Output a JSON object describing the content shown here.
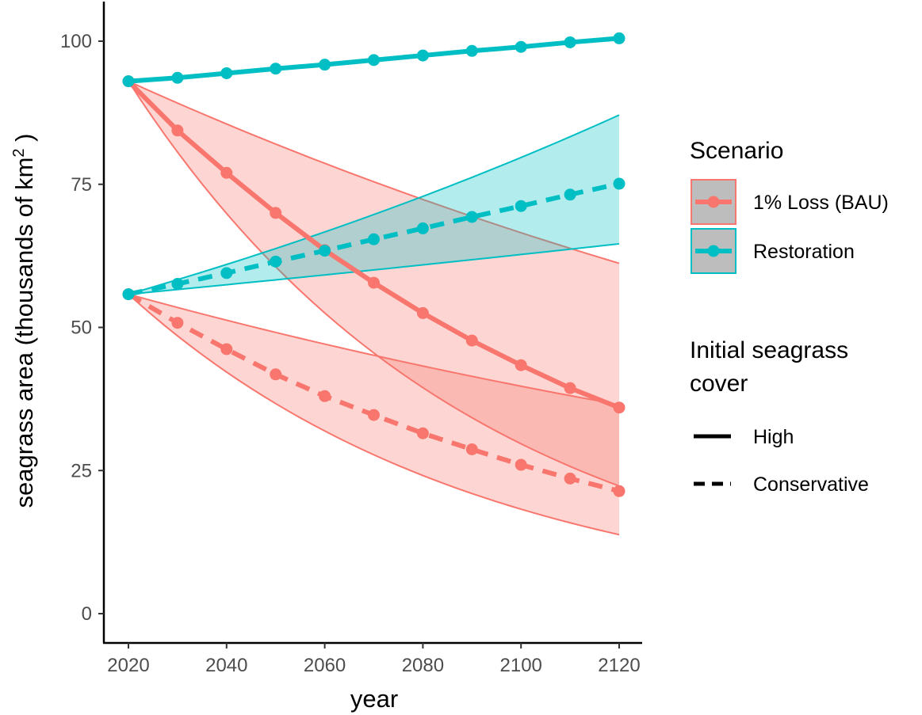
{
  "chart_data": {
    "type": "line",
    "xlabel": "year",
    "ylabel_main": "seagrass area (thousands of  km",
    "ylabel_sup": "2",
    "ylabel_close": " )",
    "xlim": [
      2020,
      2120
    ],
    "ylim": [
      0,
      100
    ],
    "x_ticks": [
      "2020",
      "2040",
      "2060",
      "2080",
      "2100",
      "2120"
    ],
    "y_ticks": [
      "0",
      "25",
      "50",
      "75",
      "100"
    ],
    "grid": false,
    "colors": {
      "loss": "#F8766D",
      "restoration": "#00BFC4"
    },
    "x": [
      2020,
      2030,
      2040,
      2050,
      2060,
      2070,
      2080,
      2090,
      2100,
      2110,
      2120
    ],
    "series": [
      {
        "name": "1% Loss (BAU)",
        "cover": "High",
        "linestyle": "solid",
        "values": [
          93,
          84.4,
          77.0,
          70.0,
          63.5,
          57.8,
          52.5,
          47.7,
          43.4,
          39.4,
          36.0
        ]
      },
      {
        "name": "1% Loss (BAU)",
        "cover": "Conservative",
        "linestyle": "dashed",
        "values": [
          55.8,
          50.8,
          46.2,
          41.8,
          38.0,
          34.7,
          31.5,
          28.7,
          26.0,
          23.6,
          21.4
        ]
      },
      {
        "name": "Restoration",
        "cover": "High",
        "linestyle": "solid",
        "values": [
          93,
          93.6,
          94.4,
          95.2,
          95.9,
          96.7,
          97.5,
          98.3,
          99.0,
          99.8,
          100.5
        ]
      },
      {
        "name": "Restoration",
        "cover": "Conservative",
        "linestyle": "dashed",
        "values": [
          55.8,
          57.6,
          59.5,
          61.5,
          63.4,
          65.4,
          67.3,
          69.3,
          71.2,
          73.2,
          75.1
        ]
      }
    ],
    "ribbons": [
      {
        "name": "1% Loss (BAU)",
        "cover": "High",
        "lower_end": 22.3,
        "upper_end": 61.2
      },
      {
        "name": "1% Loss (BAU)",
        "cover": "Conservative",
        "lower_end": 13.8,
        "upper_end": 36.5
      },
      {
        "name": "Restoration",
        "cover": "Conservative",
        "lower_end": 64.6,
        "upper_end": 87.1
      }
    ],
    "legend": {
      "placement": "right",
      "scenario_title": "Scenario",
      "scenario_items": [
        {
          "label": "1% Loss (BAU)",
          "color": "#F8766D"
        },
        {
          "label": "Restoration",
          "color": "#00BFC4"
        }
      ],
      "cover_title_line1": "Initial seagrass",
      "cover_title_line2": "cover",
      "cover_items": [
        {
          "label": "High",
          "linestyle": "solid"
        },
        {
          "label": "Conservative",
          "linestyle": "dashed"
        }
      ]
    }
  }
}
